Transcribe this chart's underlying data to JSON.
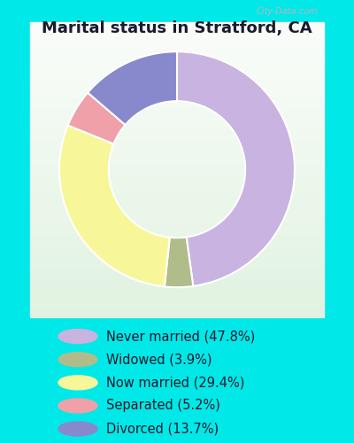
{
  "title": "Marital status in Stratford, CA",
  "slices": [
    {
      "label": "Never married (47.8%)",
      "value": 47.8,
      "color": "#c9b3e0"
    },
    {
      "label": "Widowed (3.9%)",
      "value": 3.9,
      "color": "#b0bc8a"
    },
    {
      "label": "Now married (29.4%)",
      "value": 29.4,
      "color": "#f7f799"
    },
    {
      "label": "Separated (5.2%)",
      "value": 5.2,
      "color": "#f0a0a8"
    },
    {
      "label": "Divorced (13.7%)",
      "value": 13.7,
      "color": "#8888cc"
    }
  ],
  "startangle": 90,
  "background_color_outer": "#00e8e8",
  "title_fontsize": 13,
  "legend_fontsize": 10.5,
  "watermark": "City-Data.com",
  "donut_width": 0.42
}
